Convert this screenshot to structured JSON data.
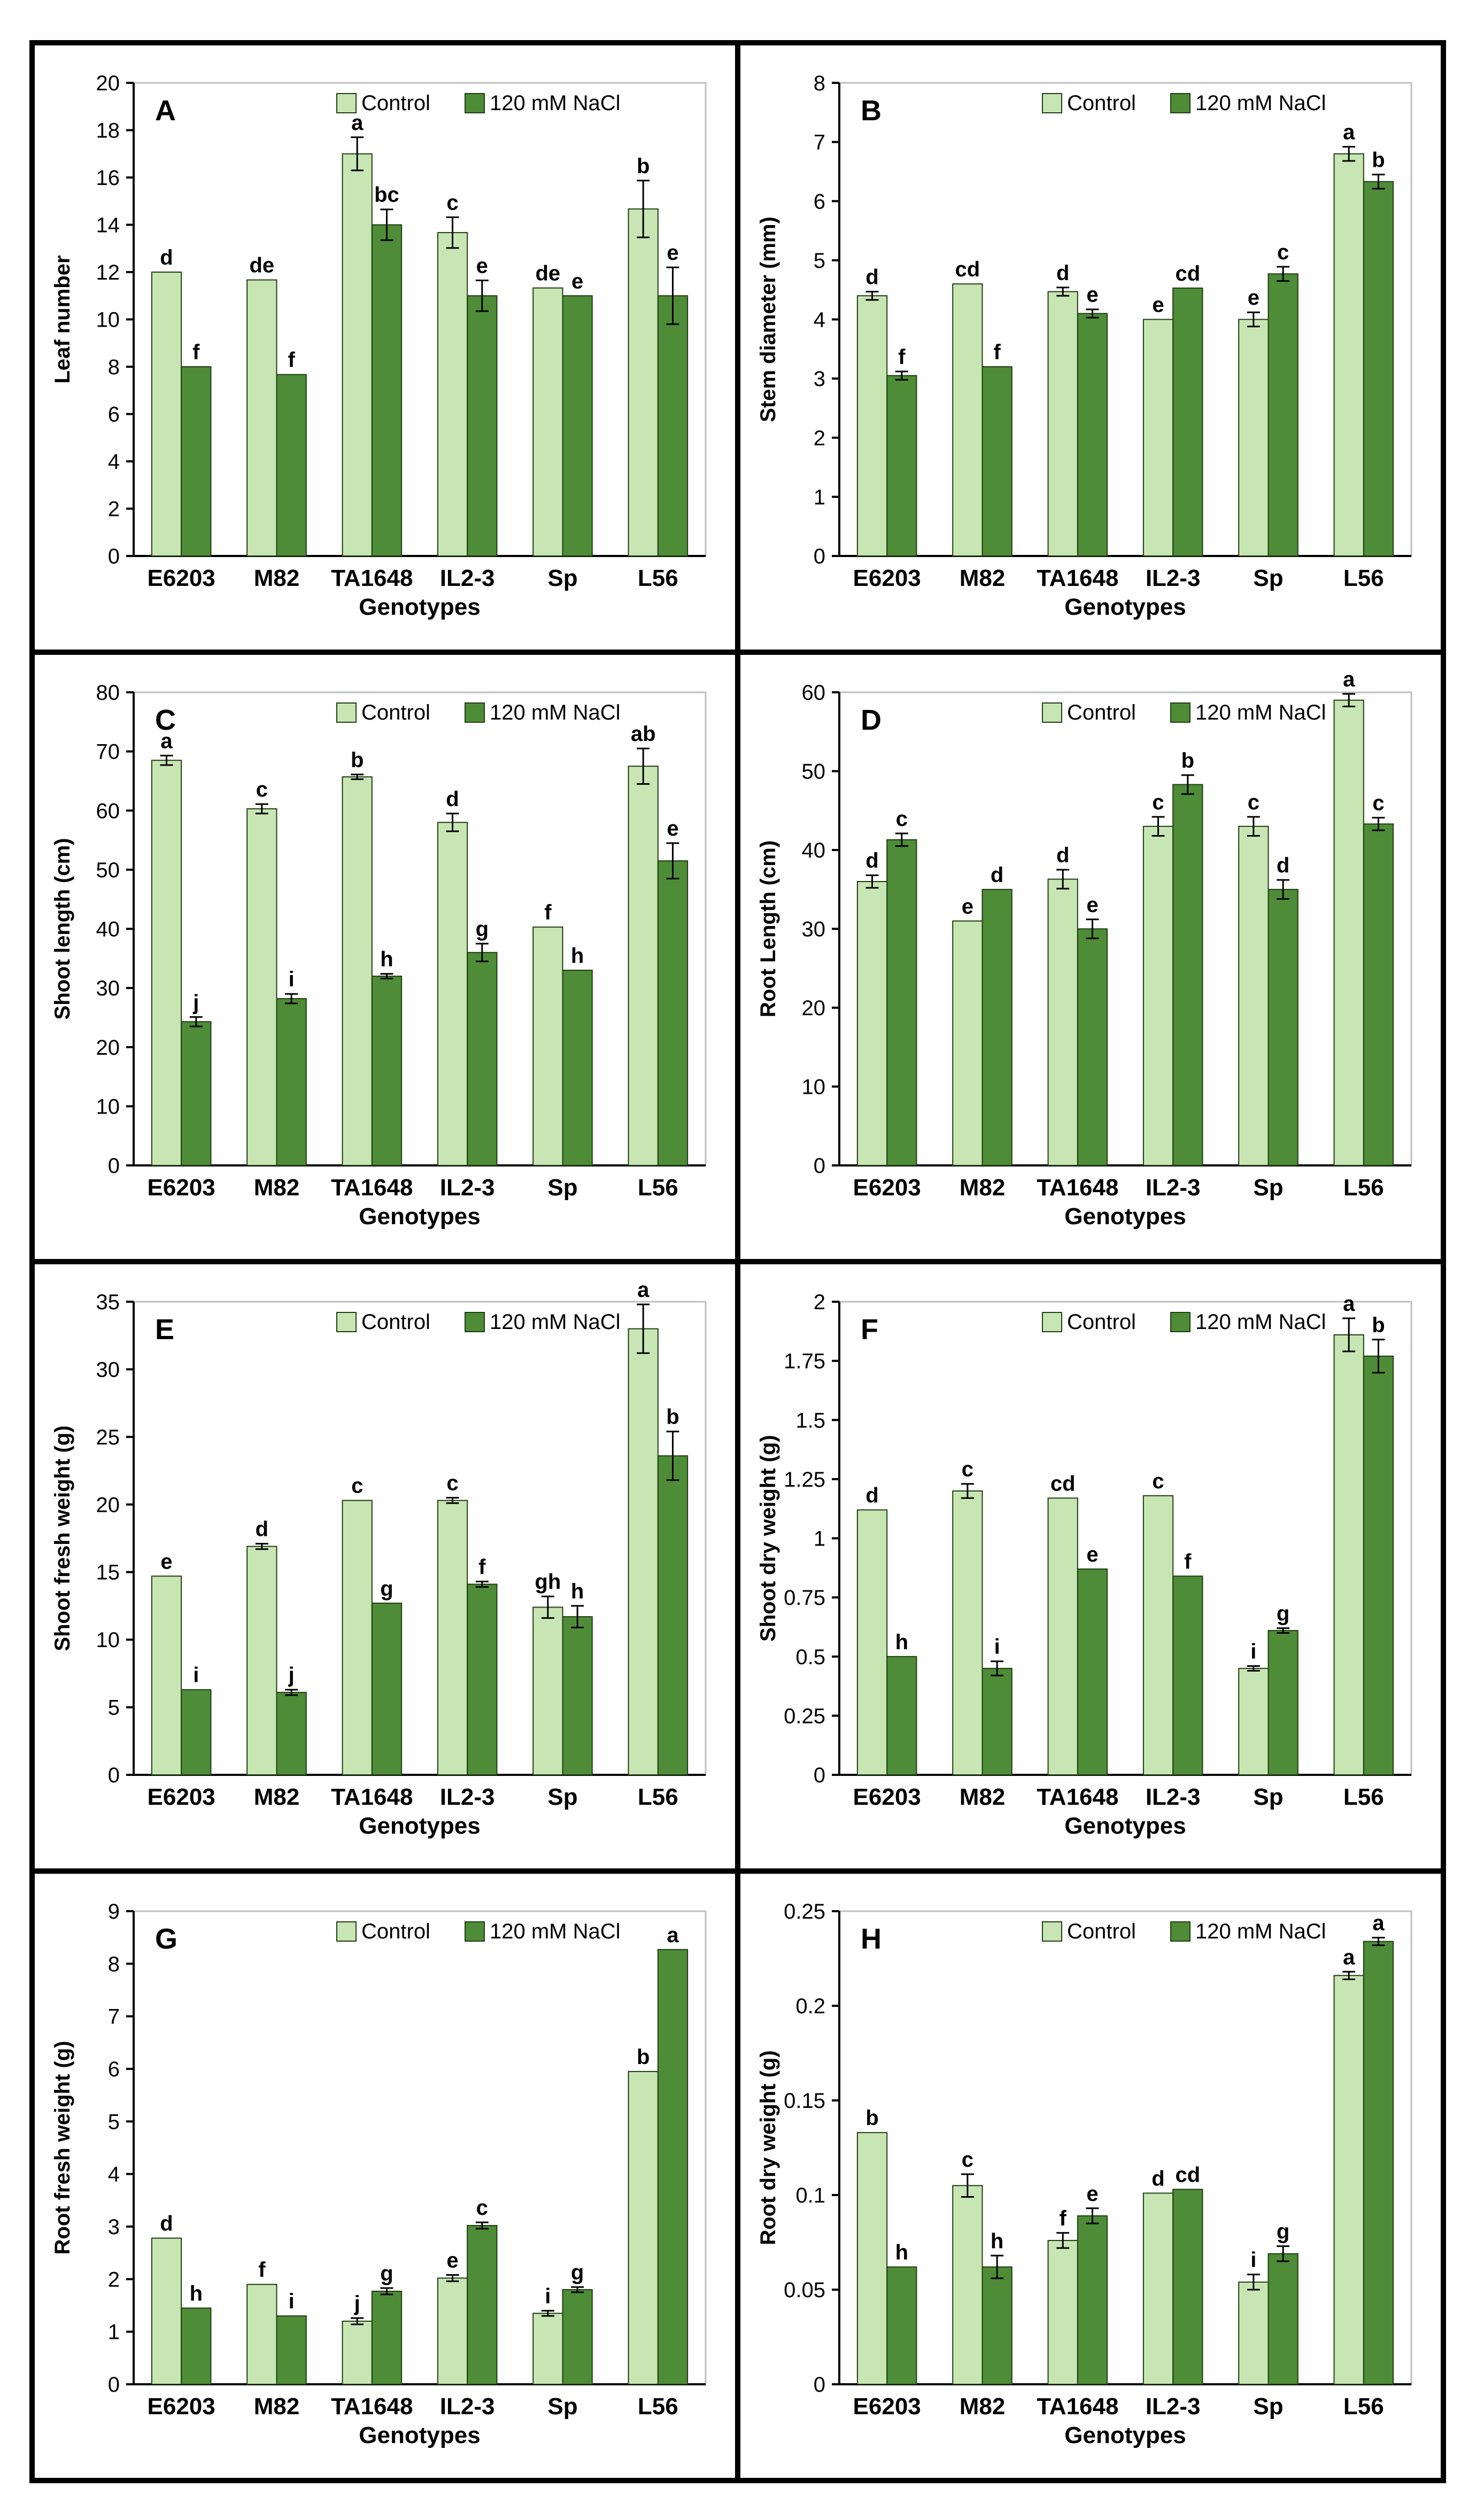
{
  "figure": {
    "legend_control": "Control",
    "legend_salt": "120 mM NaCl",
    "xlabel": "Genotypes",
    "colors": {
      "control": "#c8e6b4",
      "salt": "#4e8c37",
      "outline": "#1f3d12",
      "frame": "#000000"
    }
  },
  "chart_data": [
    {
      "type": "bar",
      "panel": "A",
      "ylabel": "Leaf number",
      "xlabel": "Genotypes",
      "categories": [
        "E6203",
        "M82",
        "TA1648",
        "IL2-3",
        "Sp",
        "L56"
      ],
      "ylim": [
        0,
        20
      ],
      "yticks": [
        "0",
        "2",
        "4",
        "6",
        "8",
        "10",
        "12",
        "14",
        "16",
        "18",
        "20"
      ],
      "series": [
        {
          "name": "Control",
          "values": [
            12.0,
            11.67,
            17.0,
            13.67,
            11.33,
            14.67
          ],
          "errors": [
            0,
            0,
            0.7,
            0.65,
            0,
            1.2
          ],
          "letters": [
            "d",
            "de",
            "a",
            "c",
            "de",
            "b"
          ]
        },
        {
          "name": "120 mM NaCl",
          "values": [
            8.0,
            7.67,
            14.0,
            11.0,
            11.0,
            11.0
          ],
          "errors": [
            0,
            0,
            0.65,
            0.65,
            0,
            1.2
          ],
          "letters": [
            "f",
            "f",
            "bc",
            "e",
            "e",
            "e"
          ]
        }
      ]
    },
    {
      "type": "bar",
      "panel": "B",
      "ylabel": "Stem diameter (mm)",
      "xlabel": "Genotypes",
      "categories": [
        "E6203",
        "M82",
        "TA1648",
        "IL2-3",
        "Sp",
        "L56"
      ],
      "ylim": [
        0,
        8
      ],
      "yticks": [
        "0",
        "1",
        "2",
        "3",
        "4",
        "5",
        "6",
        "7",
        "8"
      ],
      "series": [
        {
          "name": "Control",
          "values": [
            4.4,
            4.6,
            4.47,
            4.0,
            4.0,
            6.8
          ],
          "errors": [
            0.07,
            0,
            0.07,
            0,
            0.12,
            0.12
          ],
          "letters": [
            "d",
            "cd",
            "d",
            "e",
            "e",
            "a"
          ]
        },
        {
          "name": "120 mM NaCl",
          "values": [
            3.05,
            3.2,
            4.1,
            4.53,
            4.77,
            6.33
          ],
          "errors": [
            0.07,
            0,
            0.07,
            0,
            0.12,
            0.12
          ],
          "letters": [
            "f",
            "f",
            "e",
            "cd",
            "c",
            "b"
          ]
        }
      ]
    },
    {
      "type": "bar",
      "panel": "C",
      "ylabel": "Shoot length (cm)",
      "xlabel": "Genotypes",
      "categories": [
        "E6203",
        "M82",
        "TA1648",
        "IL2-3",
        "Sp",
        "L56"
      ],
      "ylim": [
        0,
        80
      ],
      "yticks": [
        "0",
        "10",
        "20",
        "30",
        "40",
        "50",
        "60",
        "70",
        "80"
      ],
      "series": [
        {
          "name": "Control",
          "values": [
            68.5,
            60.3,
            65.7,
            58.0,
            40.3,
            67.5
          ],
          "errors": [
            0.8,
            0.8,
            0.4,
            1.5,
            0,
            3.0
          ],
          "letters": [
            "a",
            "c",
            "b",
            "d",
            "f",
            "ab"
          ]
        },
        {
          "name": "120 mM NaCl",
          "values": [
            24.3,
            28.2,
            32.0,
            36.0,
            33.0,
            51.5
          ],
          "errors": [
            0.8,
            0.8,
            0.4,
            1.5,
            0,
            3.0
          ],
          "letters": [
            "j",
            "i",
            "h",
            "g",
            "h",
            "e"
          ]
        }
      ]
    },
    {
      "type": "bar",
      "panel": "D",
      "ylabel": "Root Length (cm)",
      "xlabel": "Genotypes",
      "categories": [
        "E6203",
        "M82",
        "TA1648",
        "IL2-3",
        "Sp",
        "L56"
      ],
      "ylim": [
        0,
        60
      ],
      "yticks": [
        "0",
        "10",
        "20",
        "30",
        "40",
        "50",
        "60"
      ],
      "series": [
        {
          "name": "Control",
          "values": [
            36.0,
            31.0,
            36.3,
            43.0,
            43.0,
            59.0
          ],
          "errors": [
            0.8,
            0,
            1.2,
            1.2,
            1.2,
            0.8
          ],
          "letters": [
            "d",
            "e",
            "d",
            "c",
            "c",
            "a"
          ]
        },
        {
          "name": "120 mM NaCl",
          "values": [
            41.3,
            35.0,
            30.0,
            48.3,
            35.0,
            43.3
          ],
          "errors": [
            0.8,
            0,
            1.2,
            1.2,
            1.2,
            0.8
          ],
          "letters": [
            "c",
            "d",
            "e",
            "b",
            "d",
            "c"
          ]
        }
      ]
    },
    {
      "type": "bar",
      "panel": "E",
      "ylabel": "Shoot fresh weight (g)",
      "xlabel": "Genotypes",
      "categories": [
        "E6203",
        "M82",
        "TA1648",
        "IL2-3",
        "Sp",
        "L56"
      ],
      "ylim": [
        0,
        35
      ],
      "yticks": [
        "0",
        "5",
        "10",
        "15",
        "20",
        "25",
        "30",
        "35"
      ],
      "series": [
        {
          "name": "Control",
          "values": [
            14.7,
            16.9,
            20.3,
            20.3,
            12.4,
            33.0
          ],
          "errors": [
            0,
            0.2,
            0,
            0.2,
            0.8,
            1.8
          ],
          "letters": [
            "e",
            "d",
            "c",
            "c",
            "gh",
            "a"
          ]
        },
        {
          "name": "120 mM NaCl",
          "values": [
            6.3,
            6.1,
            12.7,
            14.1,
            11.7,
            23.6
          ],
          "errors": [
            0,
            0.2,
            0,
            0.2,
            0.8,
            1.8
          ],
          "letters": [
            "i",
            "j",
            "g",
            "f",
            "h",
            "b"
          ]
        }
      ]
    },
    {
      "type": "bar",
      "panel": "F",
      "ylabel": "Shoot dry weight (g)",
      "xlabel": "Genotypes",
      "categories": [
        "E6203",
        "M82",
        "TA1648",
        "IL2-3",
        "Sp",
        "L56"
      ],
      "ylim": [
        0,
        2
      ],
      "yticks": [
        "0",
        "0.25",
        "0.5",
        "0.75",
        "1",
        "1.25",
        "1.5",
        "1.75",
        "2"
      ],
      "series": [
        {
          "name": "Control",
          "values": [
            1.12,
            1.2,
            1.17,
            1.18,
            0.45,
            1.86
          ],
          "errors": [
            0,
            0.03,
            0,
            0,
            0.01,
            0.07
          ],
          "letters": [
            "d",
            "c",
            "cd",
            "c",
            "i",
            "a"
          ]
        },
        {
          "name": "120 mM NaCl",
          "values": [
            0.5,
            0.45,
            0.87,
            0.84,
            0.61,
            1.77
          ],
          "errors": [
            0,
            0.03,
            0,
            0,
            0.01,
            0.07
          ],
          "letters": [
            "h",
            "i",
            "e",
            "f",
            "g",
            "b"
          ]
        }
      ]
    },
    {
      "type": "bar",
      "panel": "G",
      "ylabel": "Root fresh weight (g)",
      "xlabel": "Genotypes",
      "categories": [
        "E6203",
        "M82",
        "TA1648",
        "IL2-3",
        "Sp",
        "L56"
      ],
      "ylim": [
        0,
        9
      ],
      "yticks": [
        "0",
        "1",
        "2",
        "3",
        "4",
        "5",
        "6",
        "7",
        "8",
        "9"
      ],
      "series": [
        {
          "name": "Control",
          "values": [
            2.78,
            1.9,
            1.2,
            2.02,
            1.35,
            5.95
          ],
          "errors": [
            0,
            0,
            0.06,
            0.06,
            0.05,
            0
          ],
          "letters": [
            "d",
            "f",
            "j",
            "e",
            "i",
            "b"
          ]
        },
        {
          "name": "120 mM NaCl",
          "values": [
            1.45,
            1.3,
            1.77,
            3.02,
            1.8,
            8.27
          ],
          "errors": [
            0,
            0,
            0.06,
            0.06,
            0.05,
            0
          ],
          "letters": [
            "h",
            "i",
            "g",
            "c",
            "g",
            "a"
          ]
        }
      ]
    },
    {
      "type": "bar",
      "panel": "H",
      "ylabel": "Root dry weight (g)",
      "xlabel": "Genotypes",
      "categories": [
        "E6203",
        "M82",
        "TA1648",
        "IL2-3",
        "Sp",
        "L56"
      ],
      "ylim": [
        0,
        0.25
      ],
      "yticks": [
        "0",
        "0.05",
        "0.1",
        "0.15",
        "0.2",
        "0.25"
      ],
      "series": [
        {
          "name": "Control",
          "values": [
            0.133,
            0.105,
            0.076,
            0.101,
            0.054,
            0.216
          ],
          "errors": [
            0,
            0.006,
            0.004,
            0,
            0.004,
            0.002
          ],
          "letters": [
            "b",
            "c",
            "f",
            "d",
            "i",
            "a"
          ]
        },
        {
          "name": "120 mM NaCl",
          "values": [
            0.062,
            0.062,
            0.089,
            0.103,
            0.069,
            0.234
          ],
          "errors": [
            0,
            0.006,
            0.004,
            0,
            0.004,
            0.002
          ],
          "letters": [
            "h",
            "h",
            "e",
            "cd",
            "g",
            "a"
          ]
        }
      ]
    }
  ]
}
